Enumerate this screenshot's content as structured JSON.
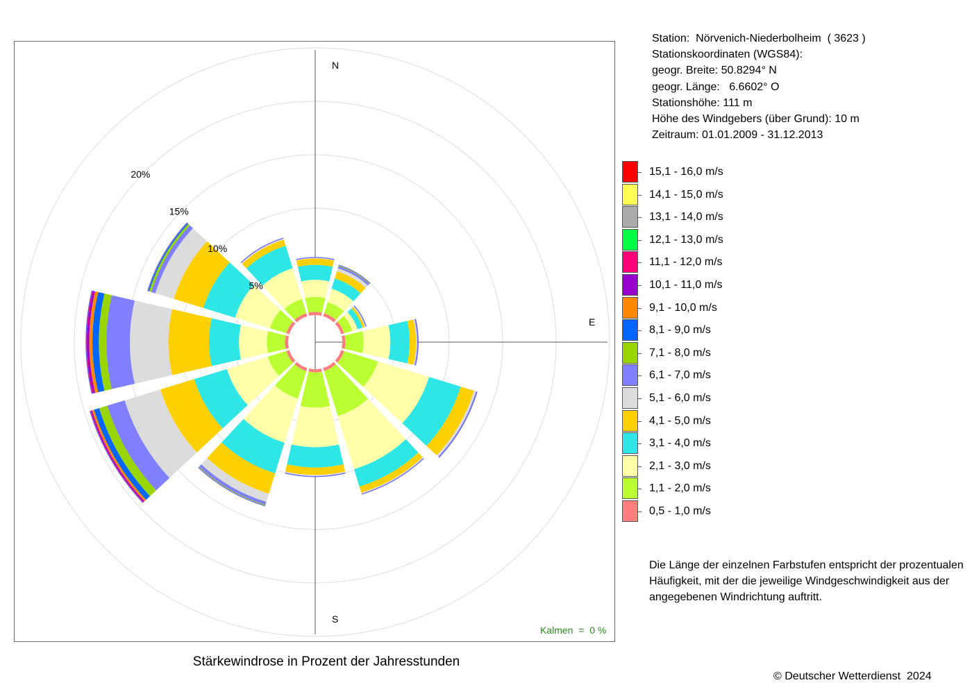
{
  "title": "Stärkewindrose in Prozent der Jahresstunden",
  "station_info": [
    "Station:  Nörvenich-Niederbolheim  ( 3623 )",
    "Stationskoordinaten (WGS84):",
    "geogr. Breite: 50.8294° N",
    "geogr. Länge:   6.6602° O",
    "Stationshöhe: 111 m",
    "Höhe des Windgebers (über Grund): 10 m",
    "Zeitraum: 01.01.2009 - 31.12.2013"
  ],
  "calms": "Kalmen  =  0 %",
  "note": "Die Länge der einzelnen Farbstufen entspricht der prozentualen Häufigkeit, mit der die jeweilige Windgeschwindigkeit aus der angegebenen Windrichtung auftritt.",
  "copyright": "© Deutscher Wetterdienst  2024",
  "direction_labels": {
    "n": "N",
    "e": "E",
    "s": "S"
  },
  "chart_data": {
    "type": "wind-rose",
    "title": "Stärkewindrose in Prozent der Jahresstunden",
    "unit": "%",
    "ring_labels": [
      "5%",
      "10%",
      "15%",
      "20%"
    ],
    "ring_values": [
      5,
      10,
      15,
      20,
      25
    ],
    "direction_step_deg": 30,
    "directions_deg": [
      0,
      30,
      60,
      90,
      120,
      150,
      180,
      210,
      240,
      270,
      300,
      330
    ],
    "speed_classes": [
      {
        "label": "0,5 - 1,0 m/s",
        "color": "#ff7f7f"
      },
      {
        "label": "1,1 - 2,0 m/s",
        "color": "#bbff33"
      },
      {
        "label": "2,1 - 3,0 m/s",
        "color": "#ffffaa"
      },
      {
        "label": "3,1 - 4,0 m/s",
        "color": "#2ee6e6"
      },
      {
        "label": "4,1 - 5,0 m/s",
        "color": "#ffd000"
      },
      {
        "label": "5,1 - 6,0 m/s",
        "color": "#dcdcdc"
      },
      {
        "label": "6,1 - 7,0 m/s",
        "color": "#8080ff"
      },
      {
        "label": "7,1 - 8,0 m/s",
        "color": "#99d600"
      },
      {
        "label": "8,1 - 9,0 m/s",
        "color": "#0066ff"
      },
      {
        "label": "9,1 - 10,0 m/s",
        "color": "#ff8800"
      },
      {
        "label": "10,1 - 11,0 m/s",
        "color": "#9900cc"
      },
      {
        "label": "11,1 - 12,0 m/s",
        "color": "#ff0077"
      },
      {
        "label": "12,1 - 13,0 m/s",
        "color": "#00ff44"
      },
      {
        "label": "13,1 - 14,0 m/s",
        "color": "#aaaaaa"
      },
      {
        "label": "14,1 - 15,0 m/s",
        "color": "#ffff55"
      },
      {
        "label": "15,1 - 16,0 m/s",
        "color": "#ff0000"
      }
    ],
    "series": [
      {
        "direction": 0,
        "values": [
          0.3,
          1.4,
          1.6,
          1.4,
          0.6,
          0.05,
          0.05,
          0,
          0,
          0,
          0,
          0,
          0,
          0,
          0,
          0
        ]
      },
      {
        "direction": 30,
        "values": [
          0.3,
          1.1,
          1.3,
          1.0,
          0.7,
          0.3,
          0.2,
          0.1,
          0,
          0,
          0,
          0,
          0,
          0,
          0,
          0
        ]
      },
      {
        "direction": 60,
        "values": [
          0.3,
          0.8,
          0.5,
          0.5,
          0.2,
          0.1,
          0.05,
          0,
          0,
          0,
          0,
          0,
          0,
          0,
          0,
          0
        ]
      },
      {
        "direction": 90,
        "values": [
          0.3,
          1.7,
          2.5,
          1.8,
          0.6,
          0.1,
          0.1,
          0,
          0,
          0,
          0,
          0,
          0,
          0,
          0,
          0
        ]
      },
      {
        "direction": 120,
        "values": [
          0.3,
          3.3,
          5.0,
          3.1,
          1.3,
          0.2,
          0.1,
          0,
          0,
          0,
          0,
          0,
          0,
          0,
          0,
          0
        ]
      },
      {
        "direction": 150,
        "values": [
          0.3,
          4.4,
          5.2,
          1.7,
          0.6,
          0.1,
          0.05,
          0,
          0,
          0,
          0,
          0,
          0,
          0,
          0,
          0
        ]
      },
      {
        "direction": 180,
        "values": [
          0.3,
          3.3,
          3.7,
          1.9,
          0.7,
          0.1,
          0.05,
          0,
          0,
          0,
          0,
          0,
          0,
          0,
          0,
          0
        ]
      },
      {
        "direction": 210,
        "values": [
          0.3,
          2.7,
          4.3,
          3.0,
          2.0,
          0.8,
          0.3,
          0.1,
          0,
          0,
          0,
          0,
          0,
          0,
          0,
          0
        ]
      },
      {
        "direction": 240,
        "values": [
          0.3,
          1.8,
          4.0,
          3.2,
          3.3,
          3.5,
          1.7,
          0.8,
          0.5,
          0.2,
          0.1,
          0.1,
          0,
          0,
          0,
          0
        ]
      },
      {
        "direction": 270,
        "values": [
          0.3,
          1.7,
          2.6,
          2.8,
          3.8,
          3.6,
          2.2,
          0.7,
          0.6,
          0.3,
          0.2,
          0.1,
          0,
          0,
          0,
          0
        ]
      },
      {
        "direction": 300,
        "values": [
          0.3,
          1.6,
          3.4,
          3.1,
          2.9,
          1.8,
          0.4,
          0.2,
          0.1,
          0.05,
          0,
          0,
          0,
          0,
          0,
          0
        ]
      },
      {
        "direction": 330,
        "values": [
          0.3,
          1.4,
          3.0,
          2.2,
          0.6,
          0.1,
          0.05,
          0,
          0,
          0,
          0,
          0,
          0,
          0,
          0,
          0
        ]
      }
    ]
  }
}
